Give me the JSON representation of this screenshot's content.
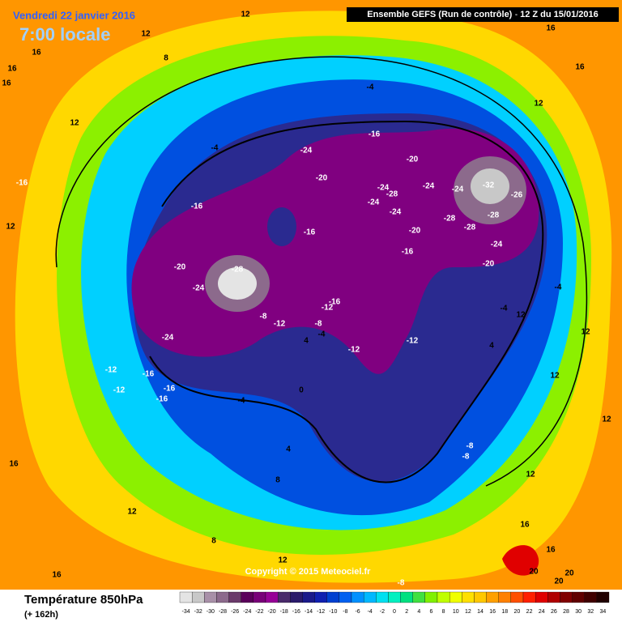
{
  "header": {
    "date": "Vendredi 22 janvier 2016",
    "time": "7:00 locale",
    "model": "Ensemble GEFS  (Run de contrôle)  -  12 Z du 15/01/2016"
  },
  "map": {
    "copyright": "Copyright © 2015 Meteociel.fr",
    "contour_labels": [
      12,
      12,
      16,
      16,
      16,
      8,
      12,
      -4,
      -4,
      -16,
      -24,
      -20,
      -20,
      -24,
      -28,
      -24,
      -24,
      -24,
      -20,
      -28,
      -28,
      -24,
      -32,
      -28,
      -26,
      -24,
      -20,
      -16,
      -16,
      -16,
      -20,
      -28,
      -24,
      -24,
      -8,
      -12,
      -16,
      -12,
      -8,
      -4,
      -12,
      -12,
      4,
      0,
      -4,
      -12,
      -12,
      -16,
      -16,
      -16,
      -4,
      -4,
      12,
      4,
      12,
      12,
      12,
      -8,
      -8,
      12,
      8,
      4,
      12,
      16,
      16,
      16,
      12,
      16,
      12,
      8,
      12,
      -8,
      16,
      16,
      20,
      20,
      20,
      -16,
      12
    ]
  },
  "legend": {
    "title": "Température 850hPa",
    "lead": "(+ 162h)",
    "ticks": [
      -34,
      -32,
      -30,
      -28,
      -26,
      -24,
      -22,
      -20,
      -18,
      -16,
      -14,
      -12,
      -10,
      -8,
      -6,
      -4,
      -2,
      0,
      2,
      4,
      6,
      8,
      10,
      12,
      14,
      16,
      18,
      20,
      22,
      24,
      26,
      28,
      30,
      32,
      34
    ],
    "colors": [
      "#e4e4e4",
      "#c8c8c8",
      "#a890a8",
      "#8c6a8c",
      "#6a3a6a",
      "#5a005a",
      "#780078",
      "#960096",
      "#4a2a6a",
      "#2a1a6a",
      "#1a1a8a",
      "#1020b0",
      "#0040d0",
      "#0060f0",
      "#0090ff",
      "#00b8ff",
      "#00e0f0",
      "#00f0c0",
      "#00e080",
      "#40e040",
      "#80f000",
      "#c0ff00",
      "#f0ff00",
      "#ffe000",
      "#ffc800",
      "#ffa000",
      "#ff8000",
      "#ff5000",
      "#ff2000",
      "#e00000",
      "#b00000",
      "#800000",
      "#600000",
      "#400000",
      "#200000"
    ]
  }
}
